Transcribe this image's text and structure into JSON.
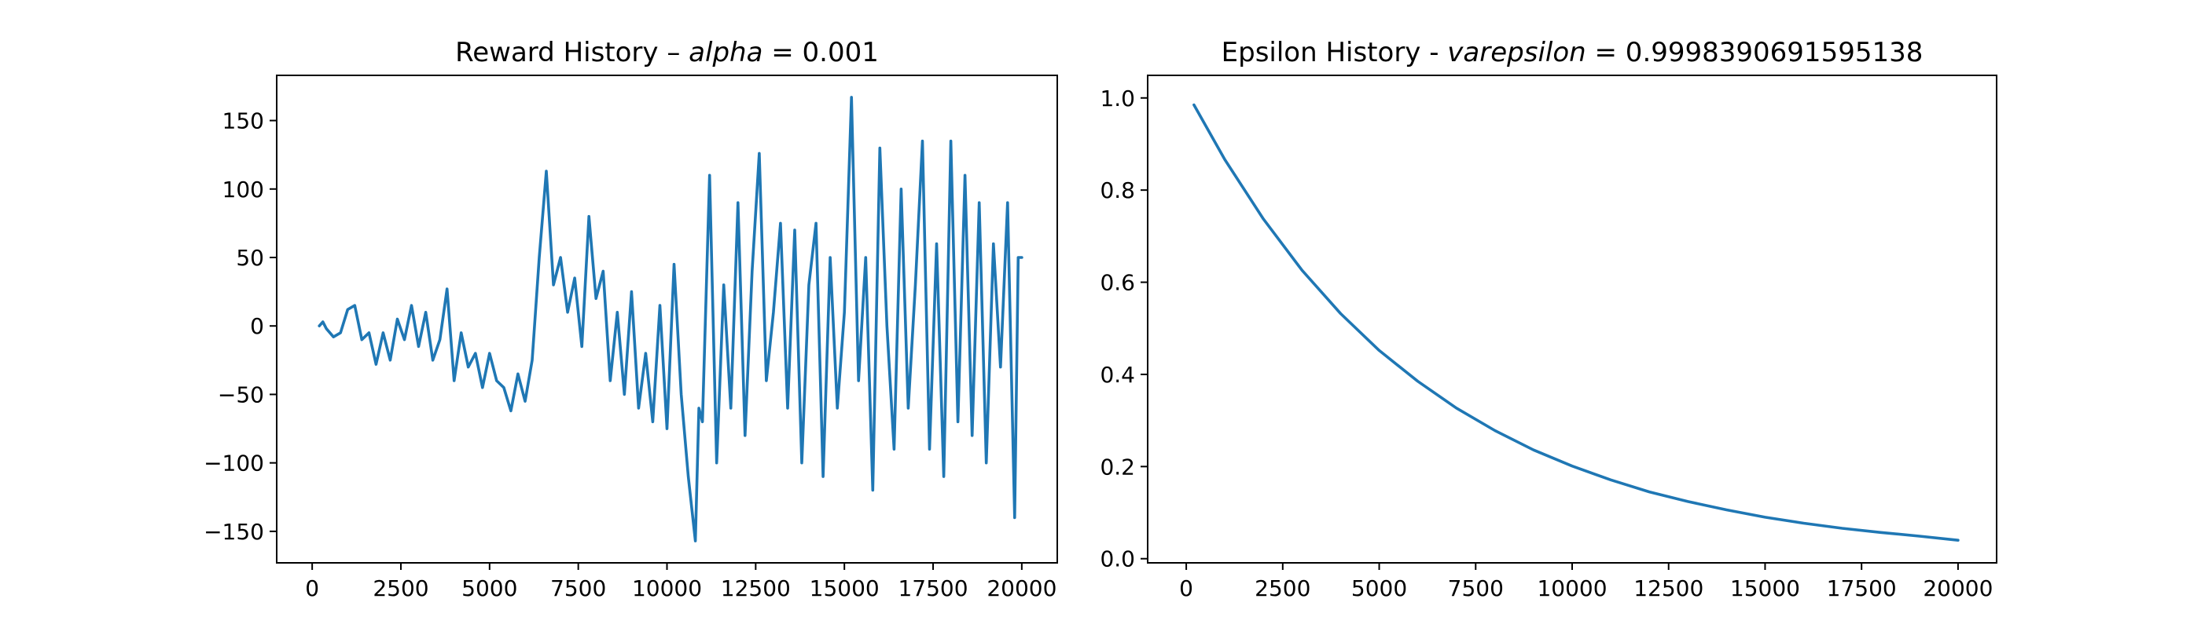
{
  "chart_data": [
    {
      "type": "line",
      "title_parts": [
        "Reward History – ",
        "alpha",
        " = 0.001"
      ],
      "xlabel": "",
      "ylabel": "",
      "xlim": [
        -1000,
        21000
      ],
      "ylim": [
        -173,
        183
      ],
      "xticks": [
        0,
        2500,
        5000,
        7500,
        10000,
        12500,
        15000,
        17500,
        20000
      ],
      "xtick_labels": [
        "0",
        "2500",
        "5000",
        "7500",
        "10000",
        "12500",
        "15000",
        "17500",
        "20000"
      ],
      "yticks": [
        -150,
        -100,
        -50,
        0,
        50,
        100,
        150
      ],
      "ytick_labels": [
        "−150",
        "−100",
        "−50",
        "0",
        "50",
        "100",
        "150"
      ],
      "grid": false,
      "color": "#1f77b4",
      "series": [
        {
          "x": [
            200,
            300,
            400,
            600,
            800,
            1000,
            1200,
            1400,
            1600,
            1800,
            2000,
            2200,
            2400,
            2600,
            2800,
            3000,
            3200,
            3400,
            3600,
            3800,
            4000,
            4200,
            4400,
            4600,
            4800,
            5000,
            5200,
            5400,
            5600,
            5800,
            6000,
            6200,
            6400,
            6600,
            6800,
            7000,
            7200,
            7400,
            7600,
            7800,
            8000,
            8200,
            8400,
            8600,
            8800,
            9000,
            9200,
            9400,
            9600,
            9800,
            10000,
            10200,
            10400,
            10600,
            10800,
            10900,
            11000,
            11200,
            11400,
            11600,
            11800,
            12000,
            12200,
            12400,
            12600,
            12800,
            13000,
            13200,
            13400,
            13600,
            13800,
            14000,
            14200,
            14400,
            14600,
            14800,
            15000,
            15200,
            15400,
            15600,
            15800,
            16000,
            16200,
            16400,
            16600,
            16800,
            17000,
            17200,
            17400,
            17600,
            17800,
            18000,
            18200,
            18400,
            18600,
            18800,
            19000,
            19200,
            19400,
            19600,
            19800,
            19900,
            20000
          ],
          "y": [
            0,
            3,
            -2,
            -8,
            -5,
            12,
            15,
            -10,
            -5,
            -28,
            -5,
            -25,
            5,
            -10,
            15,
            -15,
            10,
            -25,
            -10,
            27,
            -40,
            -5,
            -30,
            -20,
            -45,
            -20,
            -40,
            -45,
            -62,
            -35,
            -55,
            -25,
            50,
            113,
            30,
            50,
            10,
            35,
            -15,
            80,
            20,
            40,
            -40,
            10,
            -50,
            25,
            -60,
            -20,
            -70,
            15,
            -75,
            45,
            -50,
            -110,
            -157,
            -60,
            -70,
            110,
            -100,
            30,
            -60,
            90,
            -80,
            40,
            126,
            -40,
            10,
            75,
            -60,
            70,
            -100,
            30,
            75,
            -110,
            50,
            -60,
            10,
            167,
            -40,
            50,
            -120,
            130,
            0,
            -90,
            100,
            -60,
            30,
            135,
            -90,
            60,
            -110,
            135,
            -70,
            110,
            -80,
            90,
            -100,
            60,
            -30,
            90,
            -140,
            50,
            50
          ]
        }
      ]
    },
    {
      "type": "line",
      "title_parts": [
        "Epsilon History - ",
        "varepsilon",
        " = 0.9998390691595138"
      ],
      "xlabel": "",
      "ylabel": "",
      "xlim": [
        -1000,
        21000
      ],
      "ylim": [
        -0.009,
        1.049
      ],
      "xticks": [
        0,
        2500,
        5000,
        7500,
        10000,
        12500,
        15000,
        17500,
        20000
      ],
      "xtick_labels": [
        "0",
        "2500",
        "5000",
        "7500",
        "10000",
        "12500",
        "15000",
        "17500",
        "20000"
      ],
      "yticks": [
        0.0,
        0.2,
        0.4,
        0.6,
        0.8,
        1.0
      ],
      "ytick_labels": [
        "0.0",
        "0.2",
        "0.4",
        "0.6",
        "0.8",
        "1.0"
      ],
      "grid": false,
      "color": "#1f77b4",
      "series": [
        {
          "x": [
            200,
            1000,
            2000,
            3000,
            4000,
            5000,
            6000,
            7000,
            8000,
            9000,
            10000,
            11000,
            12000,
            13000,
            14000,
            15000,
            16000,
            17000,
            18000,
            19000,
            20000
          ],
          "y": [
            0.985,
            0.866,
            0.737,
            0.626,
            0.532,
            0.452,
            0.385,
            0.327,
            0.278,
            0.236,
            0.201,
            0.171,
            0.145,
            0.124,
            0.106,
            0.09,
            0.077,
            0.066,
            0.057,
            0.049,
            0.04
          ]
        }
      ]
    }
  ]
}
